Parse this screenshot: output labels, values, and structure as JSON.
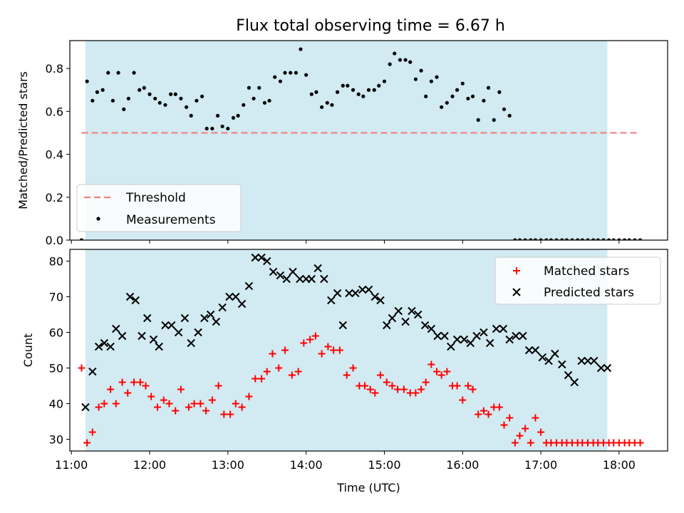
{
  "title": "Flux total observing time = 6.67 h",
  "colors": {
    "shade": "#add8e6",
    "threshold": "#f08080",
    "measurement": "#000000",
    "matched": "#ff0000",
    "predicted": "#000000"
  },
  "chart_data": [
    {
      "type": "scatter",
      "panel": "top",
      "ylabel": "Matched/Predicted stars",
      "xlabel": "",
      "xlim": [
        10.98,
        18.62
      ],
      "ylim": [
        0,
        0.93
      ],
      "yticks": [
        0.0,
        0.2,
        0.4,
        0.6,
        0.8
      ],
      "ytick_labels": [
        "0.0",
        "0.2",
        "0.4",
        "0.6",
        "0.8"
      ],
      "shaded_interval": [
        11.18,
        17.85
      ],
      "legend_position": "lower-left",
      "threshold": {
        "name": "Threshold",
        "value": 0.5,
        "x_range": [
          11.13,
          18.23
        ]
      },
      "series": [
        {
          "name": "Measurements",
          "x": [
            11.13,
            11.2,
            11.27,
            11.33,
            11.4,
            11.47,
            11.53,
            11.6,
            11.67,
            11.73,
            11.8,
            11.87,
            11.93,
            12.0,
            12.07,
            12.13,
            12.2,
            12.27,
            12.33,
            12.4,
            12.47,
            12.53,
            12.6,
            12.67,
            12.73,
            12.8,
            12.87,
            12.93,
            13.0,
            13.07,
            13.13,
            13.2,
            13.27,
            13.33,
            13.4,
            13.47,
            13.53,
            13.6,
            13.67,
            13.73,
            13.8,
            13.87,
            13.93,
            14.0,
            14.07,
            14.13,
            14.2,
            14.27,
            14.33,
            14.4,
            14.47,
            14.53,
            14.6,
            14.67,
            14.73,
            14.8,
            14.87,
            14.93,
            15.0,
            15.07,
            15.13,
            15.2,
            15.27,
            15.33,
            15.4,
            15.47,
            15.53,
            15.6,
            15.67,
            15.73,
            15.8,
            15.87,
            15.93,
            16.0,
            16.07,
            16.13,
            16.2,
            16.27,
            16.33,
            16.4,
            16.47,
            16.53,
            16.6,
            16.67,
            16.73,
            16.8,
            16.87,
            16.93,
            17.0,
            17.07,
            17.13,
            17.2,
            17.27,
            17.33,
            17.4,
            17.47,
            17.53,
            17.6,
            17.67,
            17.73,
            17.8,
            17.87,
            17.93,
            18.0,
            18.07,
            18.13,
            18.2,
            18.27
          ],
          "y": [
            0.0,
            0.74,
            0.65,
            0.69,
            0.7,
            0.78,
            0.65,
            0.78,
            0.61,
            0.66,
            0.78,
            0.7,
            0.71,
            0.68,
            0.66,
            0.64,
            0.63,
            0.68,
            0.68,
            0.66,
            0.62,
            0.58,
            0.65,
            0.67,
            0.52,
            0.52,
            0.58,
            0.53,
            0.52,
            0.57,
            0.58,
            0.63,
            0.71,
            0.66,
            0.71,
            0.64,
            0.65,
            0.76,
            0.74,
            0.78,
            0.78,
            0.78,
            0.89,
            0.77,
            0.68,
            0.69,
            0.62,
            0.64,
            0.63,
            0.69,
            0.72,
            0.72,
            0.7,
            0.68,
            0.67,
            0.7,
            0.7,
            0.72,
            0.74,
            0.82,
            0.87,
            0.84,
            0.84,
            0.83,
            0.75,
            0.79,
            0.67,
            0.74,
            0.76,
            0.62,
            0.64,
            0.67,
            0.7,
            0.73,
            0.66,
            0.67,
            0.56,
            0.65,
            0.71,
            0.56,
            0.69,
            0.61,
            0.58,
            0.0,
            0.0,
            0.0,
            0.0,
            0.0,
            0.0,
            0.0,
            0.0,
            0.0,
            0.0,
            0.0,
            0.0,
            0.0,
            0.0,
            0.0,
            0.0,
            0.0,
            0.0,
            0.0,
            0.0,
            0.0,
            0.0,
            0.0,
            0.0,
            0.0
          ]
        }
      ]
    },
    {
      "type": "scatter",
      "panel": "bottom",
      "ylabel": "Count",
      "xlabel": "Time (UTC)",
      "xlim": [
        10.98,
        18.62
      ],
      "ylim": [
        26.7,
        83.3
      ],
      "yticks": [
        30,
        40,
        50,
        60,
        70,
        80
      ],
      "ytick_labels": [
        "30",
        "40",
        "50",
        "60",
        "70",
        "80"
      ],
      "xticks": [
        11,
        12,
        13,
        14,
        15,
        16,
        17,
        18
      ],
      "xtick_labels": [
        "11:00",
        "12:00",
        "13:00",
        "14:00",
        "15:00",
        "16:00",
        "17:00",
        "18:00"
      ],
      "shaded_interval": [
        11.18,
        17.85
      ],
      "legend_position": "upper-right",
      "series": [
        {
          "name": "Matched stars",
          "x": [
            11.13,
            11.2,
            11.27,
            11.35,
            11.42,
            11.5,
            11.57,
            11.65,
            11.72,
            11.8,
            11.88,
            11.95,
            12.02,
            12.1,
            12.18,
            12.25,
            12.33,
            12.4,
            12.5,
            12.57,
            12.65,
            12.72,
            12.8,
            12.88,
            12.95,
            13.03,
            13.1,
            13.18,
            13.27,
            13.35,
            13.43,
            13.5,
            13.57,
            13.65,
            13.73,
            13.82,
            13.9,
            13.97,
            14.05,
            14.12,
            14.2,
            14.28,
            14.35,
            14.43,
            14.52,
            14.6,
            14.68,
            14.75,
            14.82,
            14.88,
            14.95,
            15.03,
            15.1,
            15.17,
            15.25,
            15.33,
            15.4,
            15.47,
            15.53,
            15.6,
            15.67,
            15.73,
            15.8,
            15.87,
            15.93,
            16.0,
            16.07,
            16.13,
            16.2,
            16.27,
            16.33,
            16.4,
            16.47,
            16.53,
            16.6,
            16.67,
            16.73,
            16.8,
            16.87,
            16.93,
            17.0,
            17.07,
            17.13,
            17.2,
            17.27,
            17.33,
            17.4,
            17.47,
            17.53,
            17.6,
            17.67,
            17.73,
            17.8,
            17.87,
            17.93,
            18.0,
            18.07,
            18.13,
            18.2,
            18.27
          ],
          "y": [
            50,
            29,
            32,
            39,
            40,
            44,
            40,
            46,
            43,
            46,
            46,
            45,
            42,
            39,
            41,
            40,
            38,
            44,
            39,
            40,
            40,
            38,
            41,
            45,
            37,
            37,
            40,
            39,
            42,
            47,
            47,
            49,
            54,
            50,
            55,
            48,
            49,
            57,
            58,
            59,
            54,
            56,
            55,
            55,
            48,
            50,
            45,
            45,
            44,
            43,
            48,
            46,
            45,
            44,
            44,
            43,
            43,
            44,
            46,
            51,
            49,
            48,
            49,
            45,
            45,
            41,
            45,
            44,
            37,
            38,
            37,
            39,
            39,
            34,
            36,
            29,
            31,
            33,
            29,
            36,
            32,
            29,
            29,
            29,
            29,
            29,
            29,
            29,
            29,
            29,
            29,
            29,
            29,
            29,
            29,
            29,
            29,
            29,
            29,
            29
          ]
        },
        {
          "name": "Predicted stars",
          "x": [
            11.18,
            11.27,
            11.35,
            11.42,
            11.5,
            11.57,
            11.65,
            11.75,
            11.82,
            11.9,
            11.97,
            12.05,
            12.12,
            12.2,
            12.28,
            12.37,
            12.45,
            12.53,
            12.62,
            12.7,
            12.78,
            12.85,
            12.93,
            13.02,
            13.1,
            13.18,
            13.27,
            13.35,
            13.43,
            13.5,
            13.58,
            13.67,
            13.75,
            13.83,
            13.92,
            14.0,
            14.07,
            14.15,
            14.23,
            14.32,
            14.4,
            14.47,
            14.55,
            14.63,
            14.72,
            14.8,
            14.88,
            14.95,
            15.03,
            15.1,
            15.18,
            15.27,
            15.35,
            15.43,
            15.52,
            15.6,
            15.68,
            15.77,
            15.85,
            15.93,
            16.02,
            16.1,
            16.18,
            16.27,
            16.35,
            16.43,
            16.52,
            16.6,
            16.68,
            16.77,
            16.85,
            16.93,
            17.02,
            17.1,
            17.18,
            17.27,
            17.35,
            17.43,
            17.52,
            17.6,
            17.68,
            17.77,
            17.85
          ],
          "y": [
            39,
            49,
            56,
            57,
            56,
            61,
            59,
            70,
            69,
            59,
            64,
            58,
            56,
            62,
            62,
            60,
            64,
            57,
            60,
            64,
            65,
            63,
            67,
            70,
            70,
            68,
            73,
            81,
            81,
            80,
            77,
            76,
            75,
            77,
            75,
            75,
            75,
            78,
            75,
            69,
            71,
            62,
            71,
            71,
            72,
            72,
            70,
            69,
            62,
            64,
            66,
            63,
            66,
            65,
            62,
            61,
            59,
            59,
            56,
            58,
            58,
            57,
            59,
            60,
            57,
            61,
            61,
            58,
            59,
            59,
            55,
            55,
            53,
            52,
            54,
            51,
            48,
            46,
            52,
            52,
            52,
            50,
            50
          ]
        }
      ]
    }
  ]
}
